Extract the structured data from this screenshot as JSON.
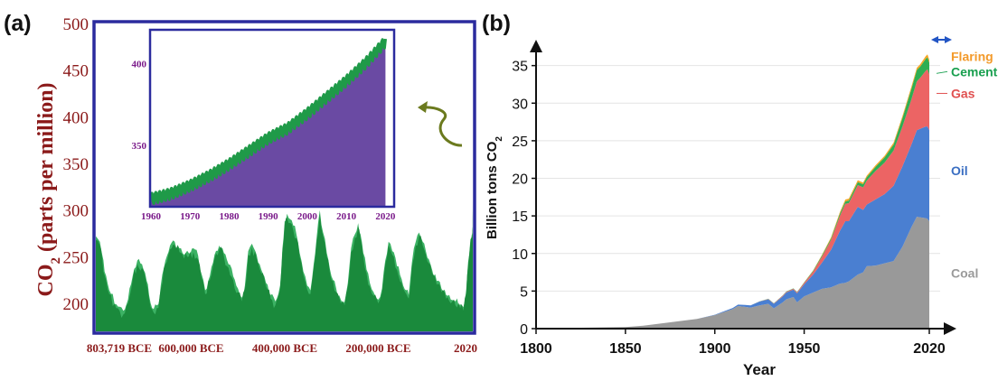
{
  "chart_data": [
    {
      "panel_label": "(a)",
      "type": "area",
      "ylabel_main": "CO",
      "ylabel_sub": "2",
      "ylabel_tail": " (parts per million)",
      "ylim": [
        170,
        500
      ],
      "yticks": [
        "500",
        "450",
        "400",
        "350",
        "300",
        "250",
        "200"
      ],
      "ytick_values": [
        500,
        450,
        400,
        350,
        300,
        250,
        200
      ],
      "xtick_labels": [
        "803,719 BCE",
        "600,000 BCE",
        "400,000 BCE",
        "200,000 BCE",
        "2020"
      ],
      "xtick_years": [
        -803719,
        -600000,
        -400000,
        -200000,
        2020
      ],
      "xlim": [
        -803719,
        2020
      ],
      "colors": {
        "axis_text": "#8b1a1a",
        "frame": "#2b2b9e",
        "area_dark": "#1a8a3c",
        "area_light": "#3cb264",
        "arrow": "#6b7a1e"
      },
      "series": [
        {
          "x": [
            -803719,
            -795000,
            -790000,
            -785000,
            -775000,
            -760000,
            -745000,
            -735000,
            -725000,
            -715000,
            -705000,
            -695000,
            -690000,
            -680000,
            -670000,
            -665000,
            -655000,
            -645000,
            -635000,
            -625000,
            -615000,
            -605000,
            -595000,
            -585000,
            -578000,
            -570000,
            -560000,
            -550000,
            -540000,
            -530000,
            -520000,
            -510000,
            -500000,
            -492000,
            -485000,
            -478000,
            -470000,
            -460000,
            -450000,
            -440000,
            -430000,
            -420000,
            -410000,
            -405000,
            -400000,
            -395000,
            -385000,
            -375000,
            -368000,
            -360000,
            -352000,
            -345000,
            -338000,
            -332000,
            -325000,
            -318000,
            -310000,
            -300000,
            -290000,
            -280000,
            -272000,
            -265000,
            -258000,
            -250000,
            -243000,
            -238000,
            -232000,
            -225000,
            -218000,
            -210000,
            -200000,
            -192000,
            -185000,
            -178000,
            -170000,
            -160000,
            -150000,
            -140000,
            -135000,
            -128000,
            -120000,
            -113000,
            -105000,
            -95000,
            -85000,
            -75000,
            -65000,
            -55000,
            -45000,
            -35000,
            -25000,
            -18000,
            -12000,
            -8000,
            -3000,
            0,
            1000,
            1800,
            1900,
            1960,
            2000,
            2020
          ],
          "values": [
            268,
            262,
            248,
            230,
            210,
            195,
            188,
            200,
            225,
            242,
            238,
            220,
            205,
            190,
            195,
            215,
            242,
            258,
            262,
            255,
            248,
            250,
            255,
            247,
            228,
            210,
            225,
            248,
            258,
            250,
            238,
            225,
            212,
            202,
            215,
            252,
            260,
            248,
            232,
            218,
            205,
            198,
            215,
            255,
            284,
            292,
            285,
            270,
            250,
            230,
            215,
            210,
            238,
            265,
            296,
            272,
            250,
            225,
            212,
            200,
            198,
            218,
            255,
            270,
            282,
            270,
            250,
            232,
            218,
            208,
            200,
            212,
            242,
            262,
            252,
            236,
            222,
            210,
            205,
            240,
            262,
            272,
            262,
            245,
            232,
            220,
            212,
            205,
            200,
            198,
            195,
            192,
            210,
            240,
            265,
            270,
            272,
            278,
            290,
            315,
            370,
            414
          ]
        }
      ],
      "inset": {
        "xlim": [
          1960,
          2022
        ],
        "ylim": [
          313,
          420
        ],
        "xtick_labels": [
          "1960",
          "1970",
          "1980",
          "1990",
          "2000",
          "2010",
          "2020"
        ],
        "xtick_values": [
          1960,
          1970,
          1980,
          1990,
          2000,
          2010,
          2020
        ],
        "ytick_labels": [
          "400",
          "350"
        ],
        "ytick_values": [
          400,
          350
        ],
        "colors": {
          "fill": "#6a4aa3",
          "line": "#1f9a48",
          "frame": "#2b2b9e",
          "text": "#7a1a8a"
        },
        "series": [
          {
            "x": [
              1960,
              1965,
              1970,
              1975,
              1980,
              1985,
              1990,
              1995,
              2000,
              2005,
              2010,
              2015,
              2020
            ],
            "values": [
              317,
              320,
              325,
              331,
              338,
              346,
              354,
              360,
              369,
              379,
              389,
              400,
              413
            ]
          }
        ]
      }
    },
    {
      "panel_label": "(b)",
      "type": "area",
      "stacked": true,
      "xlabel": "Year",
      "ylabel_main": "Billion tons CO",
      "ylabel_sub": "2",
      "xlim": [
        1800,
        2020
      ],
      "ylim": [
        0,
        37
      ],
      "xtick_labels": [
        "1800",
        "1850",
        "1900",
        "1950",
        "2020"
      ],
      "xtick_values": [
        1800,
        1850,
        1900,
        1950,
        2020
      ],
      "ytick_labels": [
        "0",
        "5",
        "10",
        "15",
        "20",
        "25",
        "30",
        "35"
      ],
      "ytick_values": [
        0,
        5,
        10,
        15,
        20,
        25,
        30,
        35
      ],
      "grid": true,
      "x": [
        1800,
        1850,
        1860,
        1870,
        1880,
        1890,
        1900,
        1905,
        1910,
        1913,
        1917,
        1920,
        1925,
        1930,
        1933,
        1938,
        1940,
        1944,
        1946,
        1950,
        1955,
        1960,
        1965,
        1970,
        1973,
        1975,
        1980,
        1983,
        1985,
        1990,
        1995,
        2000,
        2005,
        2010,
        2013,
        2015,
        2018,
        2019,
        2020
      ],
      "series": [
        {
          "name": "Coal",
          "color": "#999999",
          "label_color": "#9a9a9a",
          "values": [
            0.03,
            0.2,
            0.4,
            0.7,
            1.0,
            1.3,
            1.8,
            2.2,
            2.6,
            3.0,
            2.9,
            2.8,
            3.1,
            3.3,
            2.7,
            3.5,
            3.9,
            4.2,
            3.5,
            4.3,
            4.8,
            5.3,
            5.5,
            6.0,
            6.1,
            6.3,
            7.2,
            7.5,
            8.3,
            8.4,
            8.7,
            9.0,
            10.9,
            13.5,
            14.9,
            14.8,
            14.7,
            14.6,
            14.3
          ]
        },
        {
          "name": "Oil",
          "color": "#4a7fd1",
          "label_color": "#3a6ec2",
          "values": [
            0,
            0,
            0,
            0,
            0,
            0,
            0.05,
            0.1,
            0.15,
            0.2,
            0.25,
            0.3,
            0.5,
            0.6,
            0.6,
            0.8,
            0.9,
            1.0,
            1.2,
            1.6,
            2.4,
            3.5,
            5.0,
            7.0,
            8.2,
            8.0,
            9.0,
            8.3,
            8.2,
            8.8,
            9.2,
            10.0,
            10.7,
            11.0,
            11.5,
            11.8,
            12.2,
            12.3,
            12.1
          ]
        },
        {
          "name": "Gas",
          "color": "#ec6464",
          "label_color": "#e05050",
          "values": [
            0,
            0,
            0,
            0,
            0,
            0,
            0,
            0,
            0,
            0,
            0,
            0,
            0.02,
            0.05,
            0.05,
            0.1,
            0.1,
            0.12,
            0.12,
            0.2,
            0.4,
            0.8,
            1.3,
            2.0,
            2.3,
            2.4,
            2.9,
            3.0,
            3.2,
            3.8,
            4.2,
            4.7,
            5.3,
            6.0,
            6.5,
            6.8,
            7.4,
            7.6,
            7.4
          ]
        },
        {
          "name": "Cement",
          "color": "#2fae52",
          "label_color": "#1aa050",
          "values": [
            0,
            0,
            0,
            0,
            0,
            0,
            0,
            0,
            0,
            0,
            0,
            0,
            0.02,
            0.03,
            0.03,
            0.03,
            0.04,
            0.04,
            0.04,
            0.06,
            0.1,
            0.15,
            0.2,
            0.3,
            0.33,
            0.35,
            0.4,
            0.42,
            0.45,
            0.55,
            0.7,
            0.8,
            1.1,
            1.4,
            1.5,
            1.5,
            1.6,
            1.6,
            1.6
          ]
        },
        {
          "name": "Flaring",
          "color": "#f5a623",
          "label_color": "#f39a2a",
          "values": [
            0,
            0,
            0,
            0,
            0,
            0,
            0,
            0,
            0,
            0,
            0,
            0,
            0,
            0,
            0,
            0,
            0,
            0,
            0,
            0.02,
            0.05,
            0.1,
            0.15,
            0.2,
            0.25,
            0.25,
            0.25,
            0.22,
            0.2,
            0.2,
            0.2,
            0.25,
            0.28,
            0.3,
            0.3,
            0.3,
            0.35,
            0.38,
            0.38
          ]
        }
      ],
      "colors": {
        "axis": "#111111",
        "grid": "#e4e4e4",
        "text": "#111111",
        "arrow": "#2255c4"
      }
    }
  ]
}
